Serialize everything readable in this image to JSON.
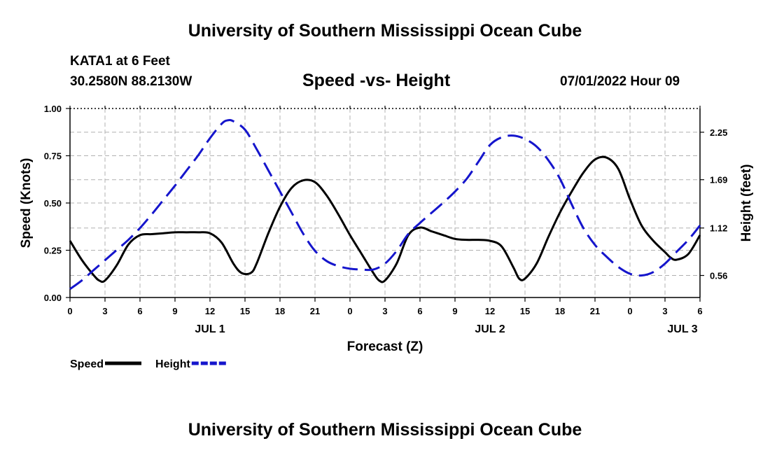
{
  "header": {
    "title_top": "University of Southern Mississippi Ocean Cube",
    "title_bottom": "University of Southern Mississippi Ocean Cube",
    "station": "KATA1 at 6 Feet",
    "coords": "30.2580N  88.2130W",
    "chart_title": "Speed -vs- Height",
    "datetime": "07/01/2022 Hour 09"
  },
  "chart_data": {
    "type": "line",
    "title": "Speed -vs- Height",
    "xlabel": "Forecast (Z)",
    "ylabel": "Speed (Knots)",
    "y2label": "Height (feet)",
    "xlim": [
      0,
      54
    ],
    "ylim": [
      0,
      1
    ],
    "y2lim": [
      0.3,
      2.53
    ],
    "grid": true,
    "legend_position": "bottom-left",
    "x_ticks": [
      0,
      3,
      6,
      9,
      12,
      15,
      18,
      21,
      24,
      27,
      30,
      33,
      36,
      39,
      42,
      45,
      48,
      51,
      54
    ],
    "x_tick_labels": [
      "0",
      "3",
      "6",
      "9",
      "12",
      "15",
      "18",
      "21",
      "0",
      "3",
      "6",
      "9",
      "12",
      "15",
      "18",
      "21",
      "0",
      "3",
      "6"
    ],
    "date_labels": [
      {
        "x": 12,
        "label": "JUL 1"
      },
      {
        "x": 36,
        "label": "JUL 2"
      },
      {
        "x": 52.5,
        "label": "JUL 3"
      }
    ],
    "y_ticks": [
      0.0,
      0.25,
      0.5,
      0.75,
      1.0
    ],
    "y_tick_labels": [
      "0.00",
      "0.25",
      "0.50",
      "0.75",
      "1.00"
    ],
    "y2_ticks": [
      0.56,
      1.12,
      1.69,
      2.25
    ],
    "y2_tick_labels": [
      "0.56",
      "1.12",
      "1.69",
      "2.25"
    ],
    "series": [
      {
        "name": "Speed",
        "axis": "left",
        "color": "#000000",
        "style": "solid",
        "x": [
          0,
          1,
          2,
          2.5,
          3,
          4,
          5,
          6,
          7,
          8,
          9,
          10,
          11,
          12,
          13,
          14,
          14.7,
          15.5,
          16,
          17,
          18,
          19,
          20,
          21,
          22,
          23,
          24,
          25,
          26,
          26.5,
          27,
          28,
          29,
          30,
          31,
          32,
          33,
          34,
          35,
          36,
          37,
          38,
          38.5,
          39,
          40,
          41,
          42,
          43,
          44,
          45,
          46,
          47,
          48,
          49,
          50,
          51,
          51.5,
          52,
          53,
          54
        ],
        "values": [
          0.3,
          0.2,
          0.12,
          0.09,
          0.09,
          0.17,
          0.28,
          0.33,
          0.335,
          0.34,
          0.345,
          0.345,
          0.345,
          0.34,
          0.29,
          0.18,
          0.13,
          0.13,
          0.18,
          0.34,
          0.48,
          0.58,
          0.62,
          0.61,
          0.54,
          0.44,
          0.33,
          0.23,
          0.13,
          0.09,
          0.09,
          0.18,
          0.33,
          0.37,
          0.35,
          0.33,
          0.31,
          0.305,
          0.305,
          0.3,
          0.27,
          0.16,
          0.1,
          0.1,
          0.18,
          0.32,
          0.45,
          0.56,
          0.66,
          0.73,
          0.74,
          0.68,
          0.52,
          0.38,
          0.3,
          0.24,
          0.21,
          0.2,
          0.23,
          0.33
        ]
      },
      {
        "name": "Height",
        "axis": "right",
        "color": "#1515cc",
        "style": "dashed",
        "x": [
          0,
          1,
          2,
          3,
          4,
          5,
          6,
          7,
          8,
          9,
          10,
          11,
          12,
          13,
          13.5,
          14,
          15,
          16,
          17,
          18,
          19,
          20,
          21,
          22,
          23,
          24,
          25,
          26,
          27,
          28,
          29,
          30,
          31,
          32,
          33,
          34,
          35,
          36,
          37,
          38,
          39,
          40,
          41,
          42,
          43,
          44,
          45,
          46,
          47,
          48,
          49,
          50,
          51,
          52,
          53,
          54
        ],
        "values": [
          0.4,
          0.5,
          0.62,
          0.74,
          0.86,
          0.98,
          1.12,
          1.28,
          1.45,
          1.62,
          1.8,
          1.98,
          2.18,
          2.35,
          2.39,
          2.38,
          2.28,
          2.05,
          1.8,
          1.55,
          1.3,
          1.05,
          0.85,
          0.73,
          0.67,
          0.64,
          0.63,
          0.63,
          0.7,
          0.85,
          1.05,
          1.18,
          1.3,
          1.42,
          1.55,
          1.7,
          1.9,
          2.1,
          2.19,
          2.21,
          2.17,
          2.08,
          1.92,
          1.7,
          1.4,
          1.12,
          0.92,
          0.78,
          0.66,
          0.58,
          0.56,
          0.6,
          0.7,
          0.84,
          0.98,
          1.15
        ]
      }
    ]
  }
}
